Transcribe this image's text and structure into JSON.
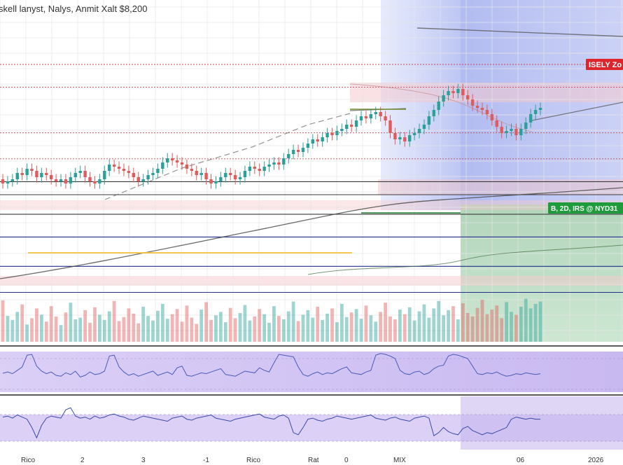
{
  "header": {
    "title": "skell lanyst, Nalys, Anmit Xalt $8,200"
  },
  "zones": {
    "sell_label": "ISELY Zo",
    "buy_label": "B, 2D, IRS @ NYD31"
  },
  "colors": {
    "bullish": "#2aa198",
    "bearish": "#e05b5b",
    "sell_zone": "#e0242c",
    "buy_zone": "#1e9b3a",
    "oscillator_band": "#c7b8f0",
    "forecast_blue": "#aebcf2",
    "forecast_green": "#9bc8a8"
  },
  "chart_data": {
    "type": "line",
    "title": "skell lanyst, Nalys, Anmit Xalt $8,200",
    "x_tick_labels": [
      "Rico",
      "2",
      "3",
      "-1",
      "Rico",
      "Rat",
      "0",
      "MIX",
      "06",
      "2026"
    ],
    "y_range": [
      0,
      100
    ],
    "grid": true,
    "price_series": {
      "name": "",
      "open": [
        48,
        46,
        47,
        48,
        51,
        50,
        53,
        52,
        49,
        51,
        50,
        48,
        47,
        48,
        46,
        49,
        51,
        52,
        49,
        47,
        46,
        48,
        52,
        55,
        54,
        53,
        52,
        51,
        49,
        47,
        48,
        50,
        51,
        53,
        56,
        58,
        57,
        56,
        55,
        53,
        52,
        50,
        51,
        48,
        46,
        47,
        49,
        51,
        50,
        48,
        49,
        52,
        54,
        53,
        52,
        54,
        55,
        56,
        55,
        58,
        60,
        62,
        61,
        63,
        65,
        67,
        66,
        68,
        70,
        69,
        71,
        72,
        74,
        73,
        76,
        78,
        77,
        79,
        80,
        78,
        76,
        70,
        67,
        68,
        66,
        69,
        70,
        72,
        74,
        78,
        81,
        85,
        88,
        90,
        89,
        91,
        88,
        86,
        83,
        82,
        81,
        79,
        76,
        73,
        70,
        71,
        72,
        69,
        72,
        75,
        79,
        81
      ],
      "close": [
        46,
        47,
        48,
        51,
        50,
        53,
        52,
        49,
        51,
        50,
        48,
        47,
        48,
        46,
        49,
        51,
        52,
        49,
        47,
        46,
        48,
        52,
        55,
        54,
        53,
        52,
        51,
        49,
        47,
        48,
        50,
        51,
        53,
        56,
        58,
        57,
        56,
        55,
        53,
        52,
        50,
        51,
        48,
        46,
        47,
        49,
        51,
        50,
        48,
        49,
        52,
        54,
        53,
        52,
        54,
        55,
        56,
        55,
        58,
        60,
        62,
        61,
        63,
        65,
        67,
        66,
        68,
        70,
        69,
        71,
        72,
        74,
        73,
        76,
        78,
        77,
        79,
        80,
        78,
        76,
        70,
        67,
        68,
        66,
        69,
        70,
        72,
        74,
        78,
        81,
        85,
        88,
        90,
        89,
        91,
        88,
        86,
        83,
        82,
        81,
        79,
        76,
        73,
        70,
        71,
        72,
        69,
        72,
        75,
        79,
        81,
        82
      ]
    },
    "volume_series": [
      72,
      45,
      38,
      52,
      65,
      30,
      41,
      58,
      47,
      35,
      62,
      44,
      29,
      51,
      68,
      39,
      42,
      55,
      33,
      60,
      47,
      38,
      53,
      71,
      36,
      43,
      58,
      49,
      32,
      61,
      45,
      37,
      54,
      66,
      40,
      48,
      57,
      35,
      63,
      42,
      31,
      56,
      69,
      38,
      46,
      52,
      34,
      59,
      41,
      50,
      64,
      37,
      44,
      57,
      48,
      33,
      62,
      45,
      39,
      53,
      70,
      36,
      47,
      55,
      42,
      61,
      38,
      49,
      58,
      34,
      66,
      43,
      51,
      57,
      40,
      63,
      46,
      35,
      52,
      68,
      44,
      39,
      56,
      48,
      60,
      37,
      53,
      65,
      42,
      58,
      71,
      46,
      55,
      62,
      39,
      67,
      50,
      44,
      59,
      73,
      48,
      56,
      63,
      41,
      69,
      52,
      47,
      61,
      75,
      58,
      66,
      70
    ],
    "oscillator_1": [
      45,
      48,
      44,
      52,
      60,
      88,
      90,
      62,
      50,
      44,
      48,
      40,
      38,
      46,
      42,
      50,
      36,
      40,
      48,
      42,
      44,
      50,
      86,
      88,
      60,
      48,
      40,
      44,
      38,
      42,
      46,
      50,
      40,
      44,
      48,
      42,
      58,
      62,
      40,
      38,
      42,
      46,
      44,
      48,
      52,
      56,
      42,
      40,
      38,
      44,
      50,
      48,
      46,
      58,
      52,
      48,
      70,
      90,
      88,
      86,
      84,
      60,
      42,
      38,
      44,
      48,
      42,
      46,
      44,
      50,
      56,
      60,
      46,
      44,
      42,
      48,
      52,
      88,
      92,
      90,
      86,
      80,
      52,
      44,
      42,
      48,
      50,
      42,
      46,
      56,
      62,
      64,
      86,
      90,
      88,
      84,
      80,
      62,
      44,
      42,
      46,
      44,
      48,
      42,
      38,
      40,
      44,
      42,
      46,
      44,
      42,
      44
    ],
    "oscillator_2": [
      60,
      62,
      58,
      64,
      60,
      56,
      40,
      20,
      44,
      58,
      62,
      60,
      58,
      74,
      78,
      62,
      58,
      60,
      56,
      62,
      58,
      60,
      64,
      66,
      62,
      60,
      56,
      54,
      58,
      62,
      60,
      58,
      56,
      54,
      52,
      58,
      60,
      62,
      56,
      54,
      58,
      60,
      62,
      64,
      58,
      56,
      54,
      52,
      56,
      58,
      60,
      62,
      64,
      66,
      60,
      58,
      56,
      62,
      64,
      58,
      30,
      26,
      40,
      56,
      58,
      54,
      52,
      56,
      58,
      62,
      60,
      58,
      56,
      58,
      60,
      62,
      64,
      58,
      56,
      54,
      58,
      60,
      56,
      54,
      52,
      58,
      60,
      62,
      58,
      24,
      30,
      40,
      32,
      28,
      26,
      38,
      42,
      34,
      30,
      26,
      30,
      28,
      32,
      36,
      40,
      56,
      60,
      58,
      56,
      58,
      56,
      56
    ],
    "horizontal_levels": [
      88,
      81,
      67,
      59,
      52,
      48,
      42,
      35,
      26,
      18
    ],
    "moving_average_points": [
      30,
      34,
      38,
      42,
      46,
      50,
      54,
      58,
      62,
      66,
      70,
      74,
      78,
      82
    ]
  }
}
